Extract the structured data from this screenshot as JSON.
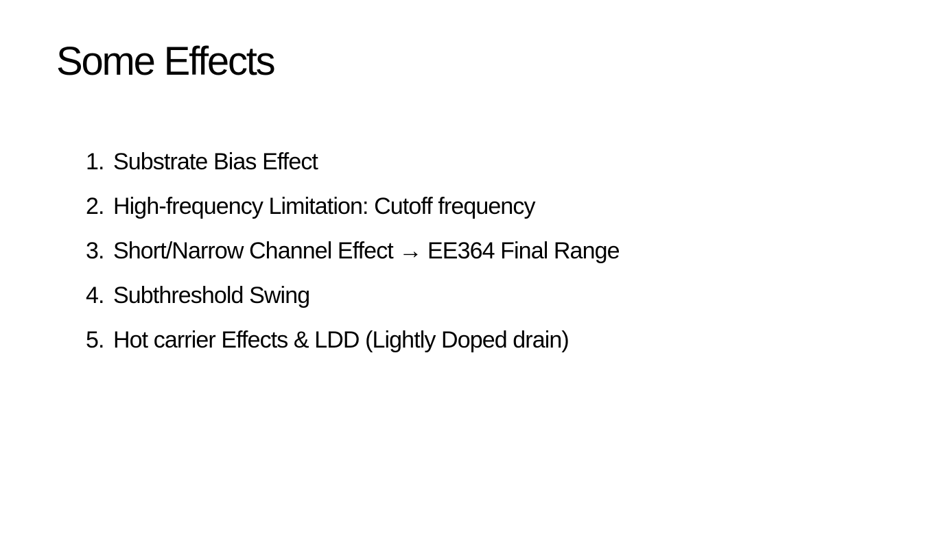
{
  "slide": {
    "title": "Some Effects",
    "items": [
      {
        "number": "1.",
        "text": "Substrate Bias Effect"
      },
      {
        "number": "2.",
        "text": "High-frequency Limitation: Cutoff frequency"
      },
      {
        "number": "3.",
        "text": "Short/Narrow Channel Effect → EE364 Final Range"
      },
      {
        "number": "4.",
        "text": "Subthreshold Swing"
      },
      {
        "number": "5.",
        "text": "Hot carrier Effects & LDD (Lightly Doped drain)"
      }
    ]
  }
}
